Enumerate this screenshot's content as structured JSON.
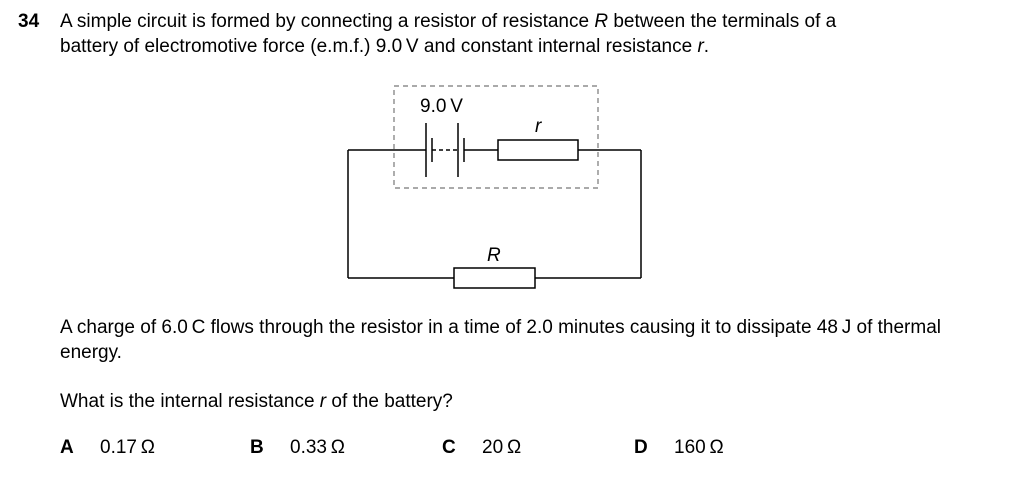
{
  "question": {
    "number": "34",
    "stem_line1_a": "A simple circuit is formed by connecting a resistor of resistance ",
    "stem_R": "R",
    "stem_line1_b": " between the terminals of a",
    "stem_line2_a": "battery of electromotive force (e.m.f.) 9.0 V and constant internal resistance ",
    "stem_r": "r",
    "stem_line2_b": ".",
    "paragraph": "A charge of 6.0 C flows through the resistor in a time of 2.0 minutes causing it to dissipate 48 J of thermal energy.",
    "prompt_a": "What is the internal resistance ",
    "prompt_r": "r",
    "prompt_b": " of the battery?"
  },
  "circuit": {
    "emf_label": "9.0 V",
    "internal_resistor_label": "r",
    "external_resistor_label": "R"
  },
  "options": [
    {
      "letter": "A",
      "value": "0.17 Ω"
    },
    {
      "letter": "B",
      "value": "0.33 Ω"
    },
    {
      "letter": "C",
      "value": "20 Ω"
    },
    {
      "letter": "D",
      "value": "160 Ω"
    }
  ]
}
